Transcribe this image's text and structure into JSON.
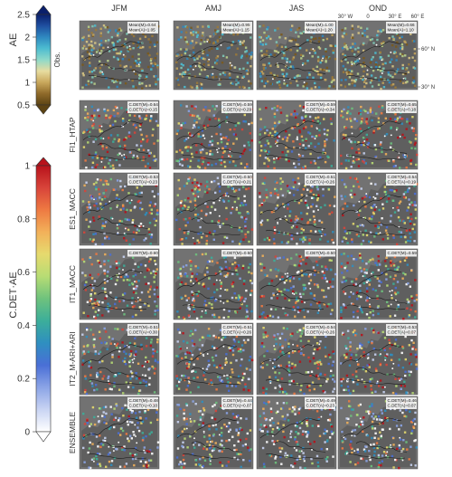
{
  "chart_data": {
    "type": "heatmap",
    "seasons": [
      "JFM",
      "AMJ",
      "JAS",
      "OND"
    ],
    "colorbar_obs": {
      "title": "AE",
      "side_label": "Obs.",
      "ticks": [
        "2.5",
        "2",
        "1.5",
        "1",
        "0.5"
      ],
      "range": [
        0.5,
        2.5
      ],
      "colors": [
        "#0a1f6b",
        "#1f4fa0",
        "#2f88c0",
        "#4dbcd0",
        "#8ed9c9",
        "#e7dca0",
        "#c9a85c",
        "#8f6a2a",
        "#5c4313"
      ]
    },
    "colorbar_cdet": {
      "title": "C.DET·AE",
      "ticks": [
        "1",
        "0.8",
        "0.6",
        "0.4",
        "0.2",
        "0"
      ],
      "range": [
        0,
        1
      ],
      "colors": [
        "#b8121b",
        "#d8443a",
        "#ee7a42",
        "#f2b15a",
        "#e6da6e",
        "#b7dc74",
        "#6ec27d",
        "#3cae9a",
        "#2f8fc0",
        "#4a6fd6",
        "#8ba4e6",
        "#c9d4f3",
        "#ffffff"
      ]
    },
    "map_axes": {
      "lon_labels": [
        "30° W",
        "0",
        "30° E",
        "60° E"
      ],
      "lat_labels": [
        "60° N",
        "30° N"
      ]
    },
    "rows": [
      {
        "label": "",
        "panels": [
          {
            "lines": [
              "Mean(M)=0.64",
              "Mean(A)=1.05"
            ]
          },
          {
            "lines": [
              "Mean(M)=0.95",
              "Mean(A)=1.15"
            ]
          },
          {
            "lines": [
              "Mean(M)=1.00",
              "Mean(A)=1.20"
            ]
          },
          {
            "lines": [
              "Mean(M)=0.66",
              "Mean(A)=1.10"
            ]
          }
        ]
      },
      {
        "label": "FI1_HTAP",
        "panels": [
          {
            "lines": [
              "C.DET(M)=0.64",
              "C.DET(A)=0.15"
            ]
          },
          {
            "lines": [
              "C.DET(M)=0.59",
              "C.DET(A)=0.29"
            ]
          },
          {
            "lines": [
              "C.DET(M)=0.59",
              "C.DET(A)=0.34"
            ]
          },
          {
            "lines": [
              "C.DET(M)=0.65",
              "C.DET(A)=0.18"
            ]
          }
        ]
      },
      {
        "label": "ES1_MACC",
        "panels": [
          {
            "lines": [
              "C.DET(M)=0.53",
              "C.DET(A)=0.23"
            ]
          },
          {
            "lines": [
              "C.DET(M)=0.50",
              "C.DET(A)=0.21"
            ]
          },
          {
            "lines": [
              "C.DET(M)=0.51",
              "C.DET(A)=0.26"
            ]
          },
          {
            "lines": [
              "C.DET(M)=0.54",
              "C.DET(A)=0.19"
            ]
          }
        ]
      },
      {
        "label": "IT1_MACC",
        "panels": [
          {
            "lines": [
              "C.DET(M)=0.60"
            ]
          },
          {
            "lines": [
              "C.DET(M)=0.50"
            ]
          },
          {
            "lines": [
              "C.DET(M)=0.50"
            ]
          },
          {
            "lines": [
              "C.DET(M)=0.59"
            ]
          }
        ]
      },
      {
        "label": "IT2_M-ARI+ARI",
        "panels": [
          {
            "lines": [
              "C.DET(M)=0.51",
              "C.DET(A)=0.30"
            ]
          },
          {
            "lines": [
              "C.DET(M)=0.51",
              "C.DET(A)=0.26"
            ]
          },
          {
            "lines": [
              "C.DET(M)=0.54",
              "C.DET(A)=0.26"
            ]
          },
          {
            "lines": [
              "C.DET(M)=0.53",
              "C.DET(A)=0.07"
            ]
          }
        ]
      },
      {
        "label": "ENSEMBLE",
        "panels": [
          {
            "lines": [
              "C.DET(M)=0.48",
              "C.DET(A)=0.10"
            ]
          },
          {
            "lines": [
              "C.DET(M)=0.44",
              "C.DET(A)=0.07"
            ]
          },
          {
            "lines": [
              "C.DET(M)=0.49",
              "C.DET(A)=0.23"
            ]
          },
          {
            "lines": [
              "C.DET(M)=0.46",
              "C.DET(A)=0.07"
            ]
          }
        ]
      }
    ]
  }
}
